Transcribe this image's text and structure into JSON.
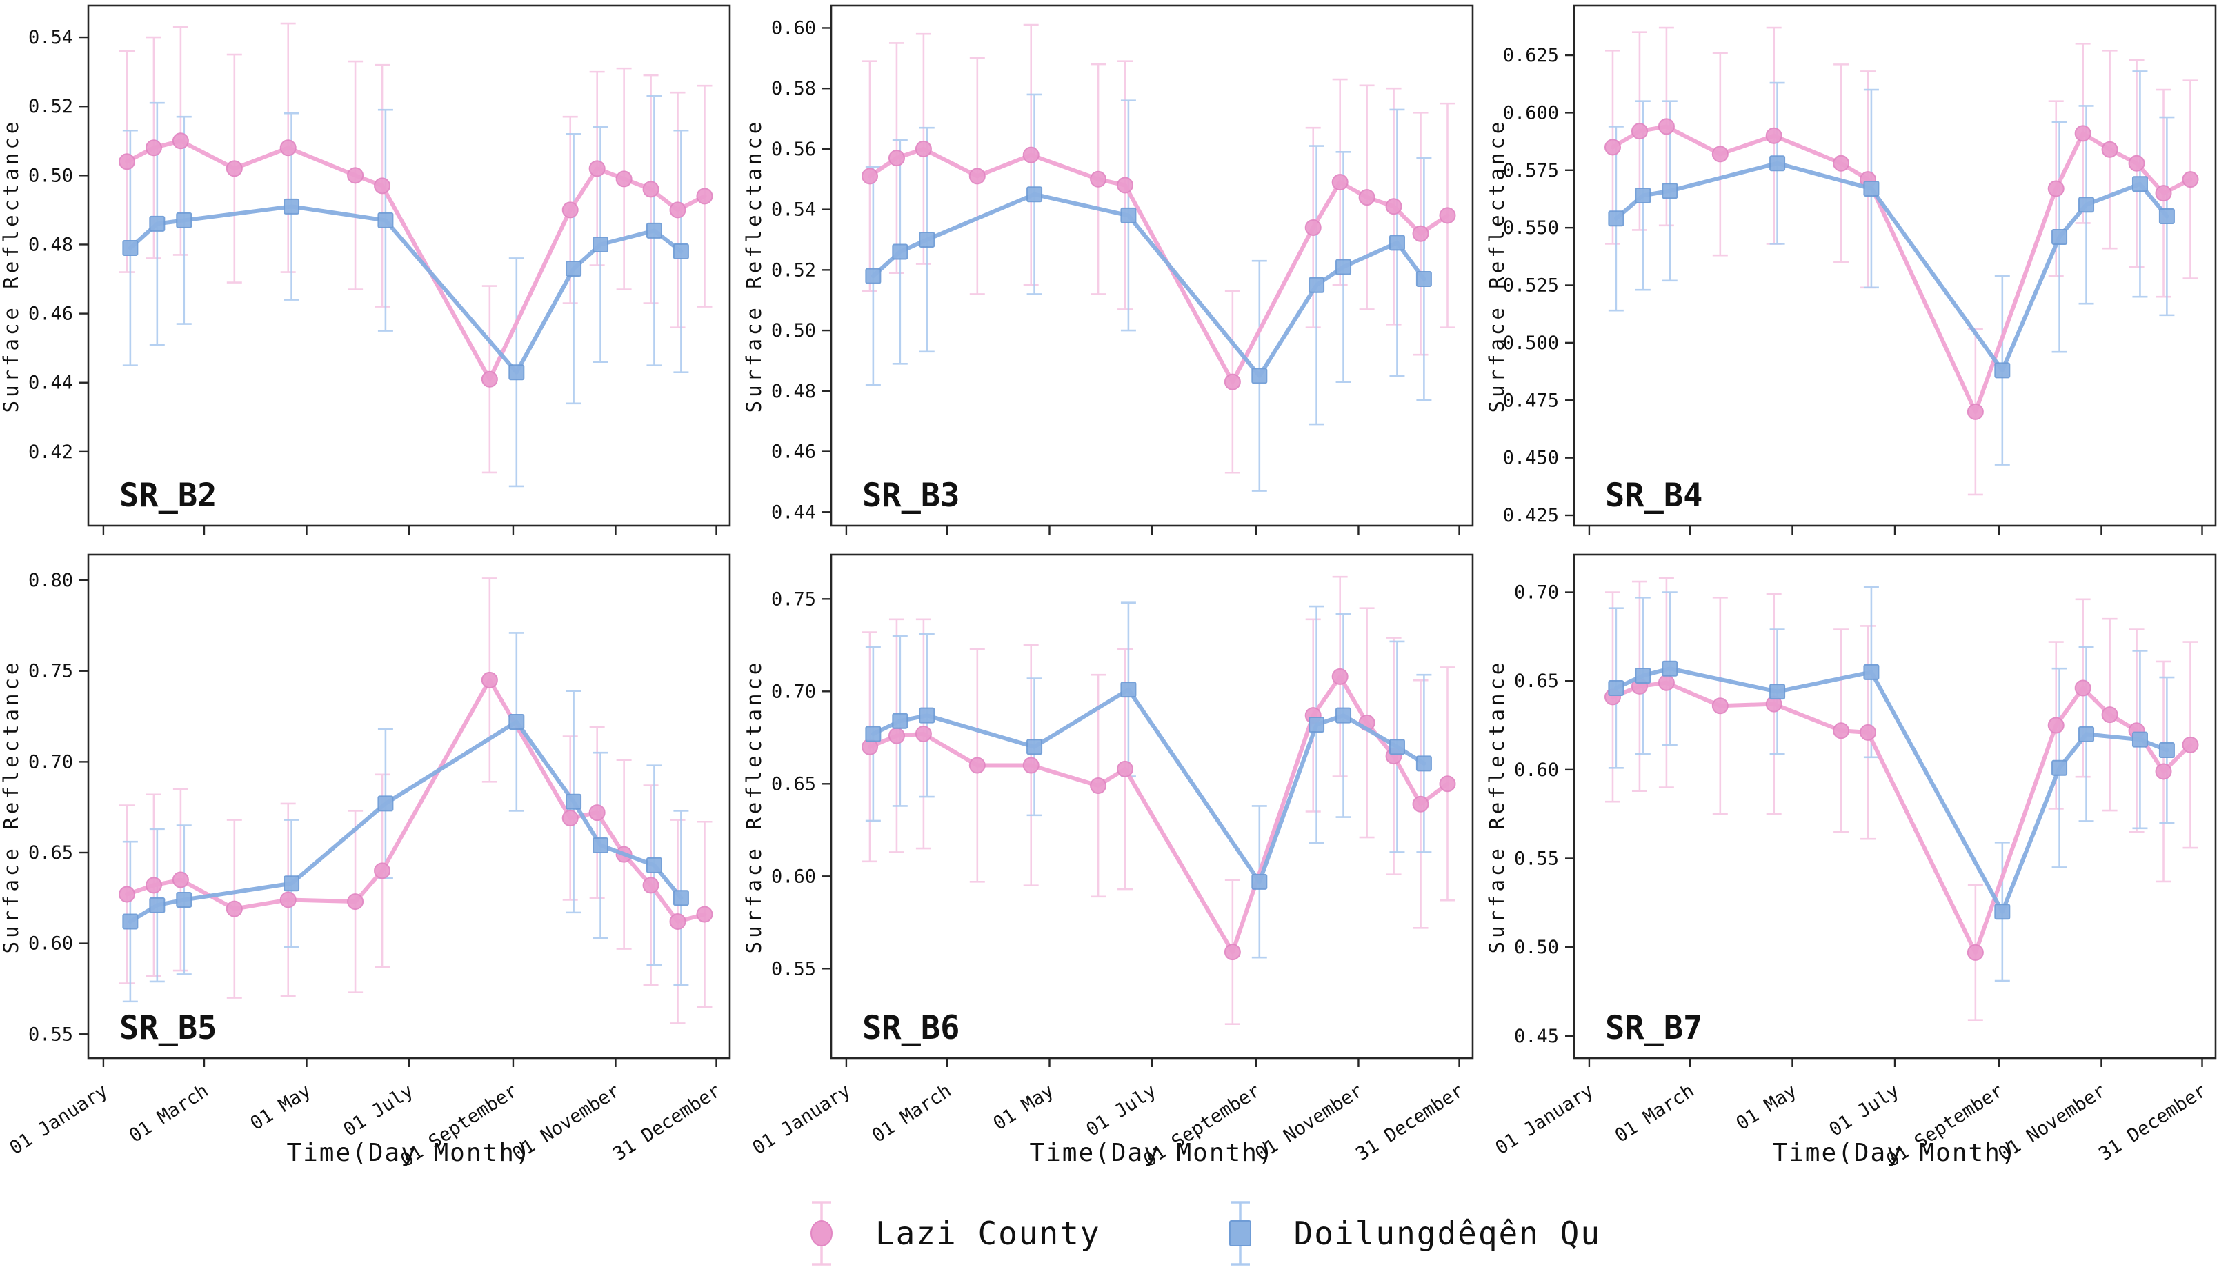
{
  "figure": {
    "ylabel": "Surface Reflectance",
    "xlabel": "Time(Day Month)",
    "xlim": [
      -8,
      374
    ],
    "x_tick_days": [
      1,
      61,
      122,
      183,
      245,
      306,
      366
    ],
    "x_tick_labels": [
      "01 January",
      "01 March",
      "01 May",
      "01 July",
      "01 September",
      "01 November",
      "31 December"
    ],
    "axis_color": "#262626",
    "text_color": "#111111",
    "background": "#ffffff",
    "legend": [
      {
        "label": "Lazi County",
        "marker": "circle",
        "line_color": "#f0a3d3",
        "marker_color": "#eb9cce",
        "marker_edge_color": "#e287c3",
        "error_bar_color": "#f6c8e4"
      },
      {
        "label": "Doilungdêqên Qu",
        "marker": "square",
        "line_color": "#86ade0",
        "marker_color": "#8cb2e2",
        "marker_edge_color": "#6f9cd6",
        "error_bar_color": "#aecbf0"
      }
    ]
  },
  "chart_data": [
    {
      "type": "line",
      "label": "SR_B2",
      "ylim": [
        0.3986,
        0.5492
      ],
      "yticks": [
        0.42,
        0.44,
        0.46,
        0.48,
        0.5,
        0.52,
        0.54
      ],
      "ytick_decimals": 2,
      "show_x_labels": false,
      "series": [
        {
          "name": "Lazi County",
          "x": [
            15,
            31,
            47,
            79,
            111,
            151,
            167,
            231,
            279,
            295,
            311,
            327,
            343,
            359
          ],
          "y": [
            0.504,
            0.508,
            0.51,
            0.502,
            0.508,
            0.5,
            0.497,
            0.441,
            0.49,
            0.502,
            0.499,
            0.496,
            0.49,
            0.494
          ],
          "err": [
            0.032,
            0.032,
            0.033,
            0.033,
            0.036,
            0.033,
            0.035,
            0.027,
            0.027,
            0.028,
            0.032,
            0.033,
            0.034,
            0.032
          ]
        },
        {
          "name": "Doilungdêqên Qu",
          "x": [
            17,
            33,
            49,
            113,
            169,
            247,
            281,
            297,
            329,
            345
          ],
          "y": [
            0.479,
            0.486,
            0.487,
            0.491,
            0.487,
            0.443,
            0.473,
            0.48,
            0.484,
            0.478
          ],
          "err": [
            0.034,
            0.035,
            0.03,
            0.027,
            0.032,
            0.033,
            0.039,
            0.034,
            0.039,
            0.035
          ]
        }
      ]
    },
    {
      "type": "line",
      "label": "SR_B3",
      "ylim": [
        0.4355,
        0.6074
      ],
      "yticks": [
        0.44,
        0.46,
        0.48,
        0.5,
        0.52,
        0.54,
        0.56,
        0.58,
        0.6
      ],
      "ytick_decimals": 2,
      "show_x_labels": false,
      "series": [
        {
          "name": "Lazi County",
          "x": [
            15,
            31,
            47,
            79,
            111,
            151,
            167,
            231,
            279,
            295,
            311,
            327,
            343,
            359
          ],
          "y": [
            0.551,
            0.557,
            0.56,
            0.551,
            0.558,
            0.55,
            0.548,
            0.483,
            0.534,
            0.549,
            0.544,
            0.541,
            0.532,
            0.538
          ],
          "err": [
            0.038,
            0.038,
            0.038,
            0.039,
            0.043,
            0.038,
            0.041,
            0.03,
            0.033,
            0.034,
            0.037,
            0.039,
            0.04,
            0.037
          ]
        },
        {
          "name": "Doilungdêqên Qu",
          "x": [
            17,
            33,
            49,
            113,
            169,
            247,
            281,
            297,
            329,
            345
          ],
          "y": [
            0.518,
            0.526,
            0.53,
            0.545,
            0.538,
            0.485,
            0.515,
            0.521,
            0.529,
            0.517
          ],
          "err": [
            0.036,
            0.037,
            0.037,
            0.033,
            0.038,
            0.038,
            0.046,
            0.038,
            0.044,
            0.04
          ]
        }
      ]
    },
    {
      "type": "line",
      "label": "SR_B4",
      "ylim": [
        0.4205,
        0.6466
      ],
      "yticks": [
        0.425,
        0.45,
        0.475,
        0.5,
        0.525,
        0.55,
        0.575,
        0.6,
        0.625
      ],
      "ytick_decimals": 3,
      "show_x_labels": false,
      "series": [
        {
          "name": "Lazi County",
          "x": [
            15,
            31,
            47,
            79,
            111,
            151,
            167,
            231,
            279,
            295,
            311,
            327,
            343,
            359
          ],
          "y": [
            0.585,
            0.592,
            0.594,
            0.582,
            0.59,
            0.578,
            0.571,
            0.47,
            0.567,
            0.591,
            0.584,
            0.578,
            0.565,
            0.571
          ],
          "err": [
            0.042,
            0.043,
            0.043,
            0.044,
            0.047,
            0.043,
            0.047,
            0.036,
            0.038,
            0.039,
            0.043,
            0.045,
            0.045,
            0.043
          ]
        },
        {
          "name": "Doilungdêqên Qu",
          "x": [
            17,
            33,
            49,
            113,
            169,
            247,
            281,
            297,
            329,
            345
          ],
          "y": [
            0.554,
            0.564,
            0.566,
            0.578,
            0.567,
            0.488,
            0.546,
            0.56,
            0.569,
            0.555
          ],
          "err": [
            0.04,
            0.041,
            0.039,
            0.035,
            0.043,
            0.041,
            0.05,
            0.043,
            0.049,
            0.043
          ]
        }
      ]
    },
    {
      "type": "line",
      "label": "SR_B5",
      "ylim": [
        0.5368,
        0.8141
      ],
      "yticks": [
        0.55,
        0.6,
        0.65,
        0.7,
        0.75,
        0.8
      ],
      "ytick_decimals": 2,
      "show_x_labels": true,
      "series": [
        {
          "name": "Lazi County",
          "x": [
            15,
            31,
            47,
            79,
            111,
            151,
            167,
            231,
            279,
            295,
            311,
            327,
            343,
            359
          ],
          "y": [
            0.627,
            0.632,
            0.635,
            0.619,
            0.624,
            0.623,
            0.64,
            0.745,
            0.669,
            0.672,
            0.649,
            0.632,
            0.612,
            0.616
          ],
          "err": [
            0.049,
            0.05,
            0.05,
            0.049,
            0.053,
            0.05,
            0.053,
            0.056,
            0.045,
            0.047,
            0.052,
            0.055,
            0.056,
            0.051
          ]
        },
        {
          "name": "Doilungdêqên Qu",
          "x": [
            17,
            33,
            49,
            113,
            169,
            247,
            281,
            297,
            329,
            345
          ],
          "y": [
            0.612,
            0.621,
            0.624,
            0.633,
            0.677,
            0.722,
            0.678,
            0.654,
            0.643,
            0.625
          ],
          "err": [
            0.044,
            0.042,
            0.041,
            0.035,
            0.041,
            0.049,
            0.061,
            0.051,
            0.055,
            0.048
          ]
        }
      ]
    },
    {
      "type": "line",
      "label": "SR_B6",
      "ylim": [
        0.5016,
        0.774
      ],
      "yticks": [
        0.55,
        0.6,
        0.65,
        0.7,
        0.75
      ],
      "ytick_decimals": 2,
      "show_x_labels": true,
      "series": [
        {
          "name": "Lazi County",
          "x": [
            15,
            31,
            47,
            79,
            111,
            151,
            167,
            231,
            279,
            295,
            311,
            327,
            343,
            359
          ],
          "y": [
            0.67,
            0.676,
            0.677,
            0.66,
            0.66,
            0.649,
            0.658,
            0.559,
            0.687,
            0.708,
            0.683,
            0.665,
            0.639,
            0.65
          ],
          "err": [
            0.062,
            0.063,
            0.062,
            0.063,
            0.065,
            0.06,
            0.065,
            0.039,
            0.052,
            0.054,
            0.062,
            0.064,
            0.067,
            0.063
          ]
        },
        {
          "name": "Doilungdêqên Qu",
          "x": [
            17,
            33,
            49,
            113,
            169,
            247,
            281,
            297,
            329,
            345
          ],
          "y": [
            0.677,
            0.684,
            0.687,
            0.67,
            0.701,
            0.597,
            0.682,
            0.687,
            0.67,
            0.661
          ],
          "err": [
            0.047,
            0.046,
            0.044,
            0.037,
            0.047,
            0.041,
            0.064,
            0.055,
            0.057,
            0.048
          ]
        }
      ]
    },
    {
      "type": "line",
      "label": "SR_B7",
      "ylim": [
        0.4375,
        0.7212
      ],
      "yticks": [
        0.45,
        0.5,
        0.55,
        0.6,
        0.65,
        0.7
      ],
      "ytick_decimals": 2,
      "show_x_labels": true,
      "series": [
        {
          "name": "Lazi County",
          "x": [
            15,
            31,
            47,
            79,
            111,
            151,
            167,
            231,
            279,
            295,
            311,
            327,
            343,
            359
          ],
          "y": [
            0.641,
            0.647,
            0.649,
            0.636,
            0.637,
            0.622,
            0.621,
            0.497,
            0.625,
            0.646,
            0.631,
            0.622,
            0.599,
            0.614
          ],
          "err": [
            0.059,
            0.059,
            0.059,
            0.061,
            0.062,
            0.057,
            0.06,
            0.038,
            0.047,
            0.05,
            0.054,
            0.057,
            0.062,
            0.058
          ]
        },
        {
          "name": "Doilungdêqên Qu",
          "x": [
            17,
            33,
            49,
            113,
            169,
            247,
            281,
            297,
            329,
            345
          ],
          "y": [
            0.646,
            0.653,
            0.657,
            0.644,
            0.655,
            0.52,
            0.601,
            0.62,
            0.617,
            0.611
          ],
          "err": [
            0.045,
            0.044,
            0.043,
            0.035,
            0.048,
            0.039,
            0.056,
            0.049,
            0.05,
            0.041
          ]
        }
      ]
    }
  ]
}
